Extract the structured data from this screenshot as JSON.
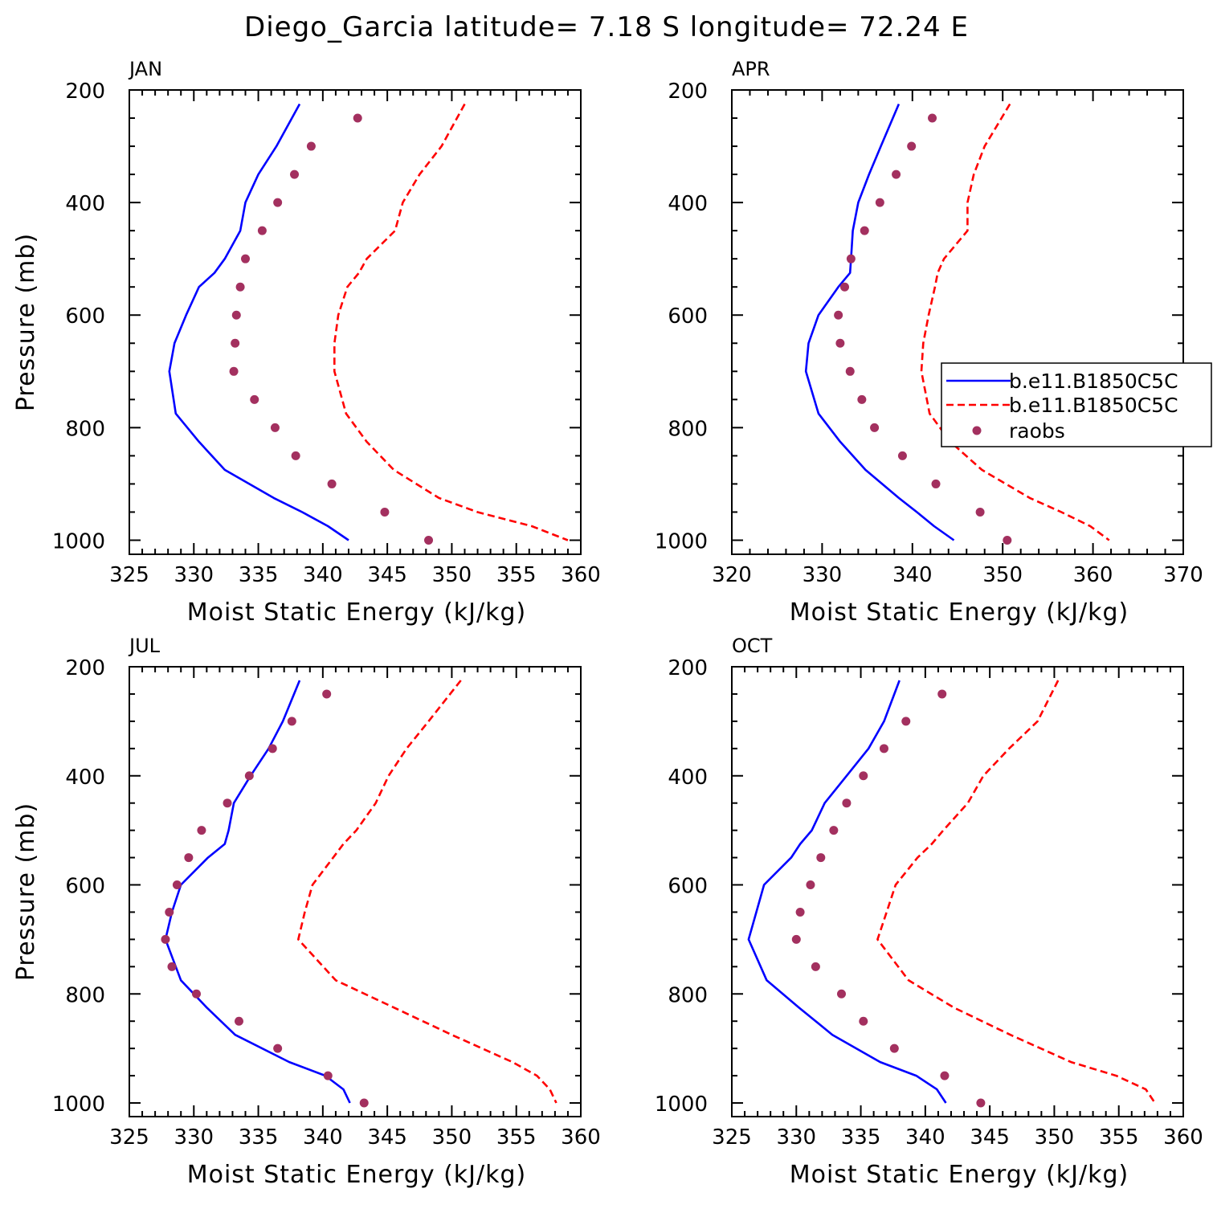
{
  "title": "Diego_Garcia  latitude= 7.18 S longitude= 72.24 E",
  "colors": {
    "model1": "#0000ff",
    "model2": "#ff0000",
    "raobs": "#a3305f",
    "axes": "#000000"
  },
  "legend": [
    "b.e11.B1850C5C",
    "b.e11.B1850C5C",
    "raobs"
  ],
  "chart_data": [
    {
      "type": "line",
      "panel": "JAN",
      "xlabel": "Moist Static Energy (kJ/kg)",
      "ylabel": "Pressure (mb)",
      "xlim": [
        325,
        360
      ],
      "xticks": [
        325,
        330,
        335,
        340,
        345,
        350,
        355,
        360
      ],
      "ylim": [
        1025,
        200
      ],
      "yticks": [
        200,
        400,
        600,
        800,
        1000
      ],
      "series": [
        {
          "name": "b.e11.B1850C5C",
          "style": "solid",
          "p": [
            225,
            300,
            350,
            400,
            450,
            500,
            525,
            550,
            600,
            650,
            700,
            775,
            825,
            875,
            925,
            950,
            975,
            1000
          ],
          "x": [
            338.2,
            336.4,
            335.0,
            334.0,
            333.6,
            332.4,
            331.6,
            330.4,
            329.4,
            328.5,
            328.1,
            328.6,
            330.4,
            332.4,
            336.2,
            338.4,
            340.4,
            342.0
          ]
        },
        {
          "name": "b.e11.B1850C5C",
          "style": "dashed",
          "p": [
            225,
            300,
            350,
            400,
            450,
            500,
            525,
            550,
            600,
            650,
            700,
            775,
            825,
            875,
            925,
            950,
            975,
            1000
          ],
          "x": [
            351.0,
            349.2,
            347.5,
            346.2,
            345.6,
            343.4,
            342.8,
            341.9,
            341.2,
            340.9,
            340.9,
            341.8,
            343.4,
            345.5,
            349.0,
            352.0,
            356.2,
            359.0
          ]
        },
        {
          "name": "raobs",
          "style": "dots",
          "p": [
            250,
            300,
            350,
            400,
            450,
            500,
            550,
            600,
            650,
            700,
            750,
            800,
            850,
            900,
            950,
            1000
          ],
          "x": [
            342.7,
            339.1,
            337.8,
            336.5,
            335.3,
            334.0,
            333.6,
            333.3,
            333.2,
            333.1,
            334.7,
            336.3,
            337.9,
            340.7,
            344.8,
            348.2
          ]
        }
      ]
    },
    {
      "type": "line",
      "panel": "APR",
      "xlabel": "Moist Static Energy (kJ/kg)",
      "ylabel": "",
      "xlim": [
        320,
        370
      ],
      "xticks": [
        320,
        330,
        340,
        350,
        360,
        370
      ],
      "ylim": [
        1025,
        200
      ],
      "yticks": [
        200,
        400,
        600,
        800,
        1000
      ],
      "series": [
        {
          "name": "b.e11.B1850C5C",
          "style": "solid",
          "p": [
            225,
            300,
            350,
            400,
            450,
            500,
            525,
            550,
            600,
            650,
            700,
            775,
            825,
            875,
            925,
            950,
            975,
            1000
          ],
          "x": [
            338.5,
            336.5,
            335.2,
            334.0,
            333.4,
            333.2,
            333.1,
            331.8,
            329.6,
            328.5,
            328.2,
            329.6,
            332.0,
            334.8,
            338.5,
            340.5,
            342.4,
            344.6
          ]
        },
        {
          "name": "b.e11.B1850C5C",
          "style": "dashed",
          "p": [
            225,
            300,
            350,
            400,
            450,
            500,
            525,
            550,
            600,
            650,
            700,
            775,
            825,
            875,
            925,
            950,
            975,
            1000
          ],
          "x": [
            350.8,
            348.0,
            346.8,
            346.1,
            346.1,
            343.5,
            342.8,
            342.5,
            341.8,
            341.2,
            341.0,
            341.9,
            344.2,
            347.7,
            353.0,
            356.5,
            359.7,
            361.8
          ]
        },
        {
          "name": "raobs",
          "style": "dots",
          "p": [
            250,
            300,
            350,
            400,
            450,
            500,
            550,
            600,
            650,
            700,
            750,
            800,
            850,
            900,
            950,
            1000
          ],
          "x": [
            342.2,
            339.9,
            338.2,
            336.4,
            334.7,
            333.2,
            332.5,
            331.8,
            332.0,
            333.1,
            334.4,
            335.8,
            338.9,
            342.6,
            347.5,
            350.5
          ]
        }
      ]
    },
    {
      "type": "line",
      "panel": "JUL",
      "xlabel": "Moist Static Energy (kJ/kg)",
      "ylabel": "Pressure (mb)",
      "xlim": [
        325,
        360
      ],
      "xticks": [
        325,
        330,
        335,
        340,
        345,
        350,
        355,
        360
      ],
      "ylim": [
        1025,
        200
      ],
      "yticks": [
        200,
        400,
        600,
        800,
        1000
      ],
      "series": [
        {
          "name": "b.e11.B1850C5C",
          "style": "solid",
          "p": [
            225,
            300,
            350,
            400,
            450,
            500,
            525,
            550,
            600,
            650,
            700,
            775,
            825,
            875,
            925,
            950,
            975,
            1000
          ],
          "x": [
            338.2,
            336.9,
            335.8,
            334.4,
            333.1,
            332.7,
            332.4,
            331.1,
            329.0,
            328.3,
            327.8,
            329.0,
            331.0,
            333.2,
            337.4,
            340.2,
            341.6,
            342.1
          ]
        },
        {
          "name": "b.e11.B1850C5C",
          "style": "dashed",
          "p": [
            225,
            300,
            350,
            400,
            450,
            500,
            525,
            550,
            600,
            650,
            700,
            775,
            825,
            875,
            925,
            950,
            975,
            1000
          ],
          "x": [
            350.7,
            348.2,
            346.5,
            345.1,
            344.1,
            342.6,
            341.6,
            340.8,
            339.2,
            338.6,
            338.1,
            341.0,
            345.5,
            350.0,
            354.7,
            356.6,
            357.6,
            358.1
          ]
        },
        {
          "name": "raobs",
          "style": "dots",
          "p": [
            250,
            300,
            350,
            400,
            450,
            500,
            550,
            600,
            650,
            700,
            750,
            800,
            850,
            900,
            950,
            1000
          ],
          "x": [
            340.3,
            337.6,
            336.1,
            334.3,
            332.6,
            330.6,
            329.6,
            328.7,
            328.1,
            327.8,
            328.3,
            330.2,
            333.5,
            336.5,
            340.4,
            343.2
          ]
        }
      ]
    },
    {
      "type": "line",
      "panel": "OCT",
      "xlabel": "Moist Static Energy (kJ/kg)",
      "ylabel": "",
      "xlim": [
        325,
        360
      ],
      "xticks": [
        325,
        330,
        335,
        340,
        345,
        350,
        355,
        360
      ],
      "ylim": [
        1025,
        200
      ],
      "yticks": [
        200,
        400,
        600,
        800,
        1000
      ],
      "series": [
        {
          "name": "b.e11.B1850C5C",
          "style": "solid",
          "p": [
            225,
            300,
            350,
            400,
            450,
            500,
            525,
            550,
            600,
            650,
            700,
            775,
            825,
            875,
            925,
            950,
            975,
            1000
          ],
          "x": [
            338.0,
            336.8,
            335.6,
            333.9,
            332.2,
            331.2,
            330.3,
            329.6,
            327.5,
            326.9,
            326.3,
            327.7,
            330.2,
            332.8,
            336.5,
            339.3,
            340.9,
            341.6
          ]
        },
        {
          "name": "b.e11.B1850C5C",
          "style": "dashed",
          "p": [
            225,
            300,
            350,
            400,
            450,
            500,
            525,
            550,
            600,
            650,
            700,
            775,
            825,
            875,
            925,
            950,
            975,
            1000
          ],
          "x": [
            350.3,
            348.7,
            346.5,
            344.5,
            343.3,
            341.4,
            340.5,
            339.4,
            337.7,
            337.0,
            336.3,
            338.7,
            342.2,
            346.6,
            351.3,
            354.8,
            357.1,
            357.8
          ]
        },
        {
          "name": "raobs",
          "style": "dots",
          "p": [
            250,
            300,
            350,
            400,
            450,
            500,
            550,
            600,
            650,
            700,
            750,
            800,
            850,
            900,
            950,
            1000
          ],
          "x": [
            341.3,
            338.5,
            336.8,
            335.2,
            333.9,
            332.9,
            331.9,
            331.1,
            330.3,
            330.0,
            331.5,
            333.5,
            335.2,
            337.6,
            341.5,
            344.3
          ]
        }
      ]
    }
  ]
}
